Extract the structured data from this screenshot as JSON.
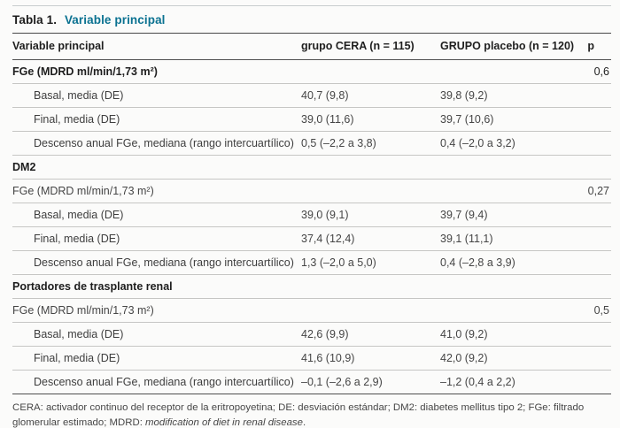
{
  "title": {
    "number": "Tabla 1.",
    "text": "Variable principal"
  },
  "colors": {
    "accent_teal": "#0b7291",
    "rule_dark": "#4e4e4e",
    "rule_light": "#c6c6c4"
  },
  "table": {
    "headers": {
      "variable": "Variable principal",
      "cera": "grupo CERA (n = 115)",
      "placebo": "GRUPO placebo (n = 120)",
      "p": "p"
    },
    "rows": [
      {
        "label": "FGe (MDRD ml/min/1,73 m²)",
        "cera": "",
        "placebo": "",
        "p": "0,6"
      },
      {
        "label": "Basal, media (DE)",
        "cera": "40,7 (9,8)",
        "placebo": "39,8 (9,2)",
        "p": ""
      },
      {
        "label": "Final, media (DE)",
        "cera": "39,0 (11,6)",
        "placebo": "39,7 (10,6)",
        "p": ""
      },
      {
        "label": "Descenso anual FGe, mediana (rango intercuartílico)",
        "cera": "0,5 (–2,2 a 3,8)",
        "placebo": "0,4 (–2,0 a 3,2)",
        "p": ""
      },
      {
        "label": "DM2",
        "cera": "",
        "placebo": "",
        "p": ""
      },
      {
        "label": "FGe (MDRD ml/min/1,73 m²)",
        "cera": "",
        "placebo": "",
        "p": "0,27"
      },
      {
        "label": "Basal, media (DE)",
        "cera": "39,0 (9,1)",
        "placebo": "39,7 (9,4)",
        "p": ""
      },
      {
        "label": "Final, media (DE)",
        "cera": "37,4 (12,4)",
        "placebo": "39,1 (11,1)",
        "p": ""
      },
      {
        "label": "Descenso anual FGe, mediana (rango intercuartílico)",
        "cera": "1,3 (–2,0 a 5,0)",
        "placebo": "0,4 (–2,8 a 3,9)",
        "p": ""
      },
      {
        "label": "Portadores de trasplante renal",
        "cera": "",
        "placebo": "",
        "p": ""
      },
      {
        "label": "FGe (MDRD ml/min/1,73 m²)",
        "cera": "",
        "placebo": "",
        "p": "0,5"
      },
      {
        "label": "Basal, media (DE)",
        "cera": "42,6 (9,9)",
        "placebo": "41,0 (9,2)",
        "p": ""
      },
      {
        "label": "Final, media (DE)",
        "cera": "41,6 (10,9)",
        "placebo": "42,0 (9,2)",
        "p": ""
      },
      {
        "label": "Descenso anual FGe, mediana (rango intercuartílico)",
        "cera": "–0,1 (–2,6 a 2,9)",
        "placebo": "–1,2 (0,4 a 2,2)",
        "p": ""
      }
    ]
  },
  "footnote": {
    "text": "CERA: activador continuo del receptor de la eritropoyetina; DE: desviación estándar; DM2: diabetes mellitus tipo 2; FGe: filtrado glomerular estimado; MDRD: ",
    "italic": "modification of diet in renal disease",
    "end": "."
  }
}
